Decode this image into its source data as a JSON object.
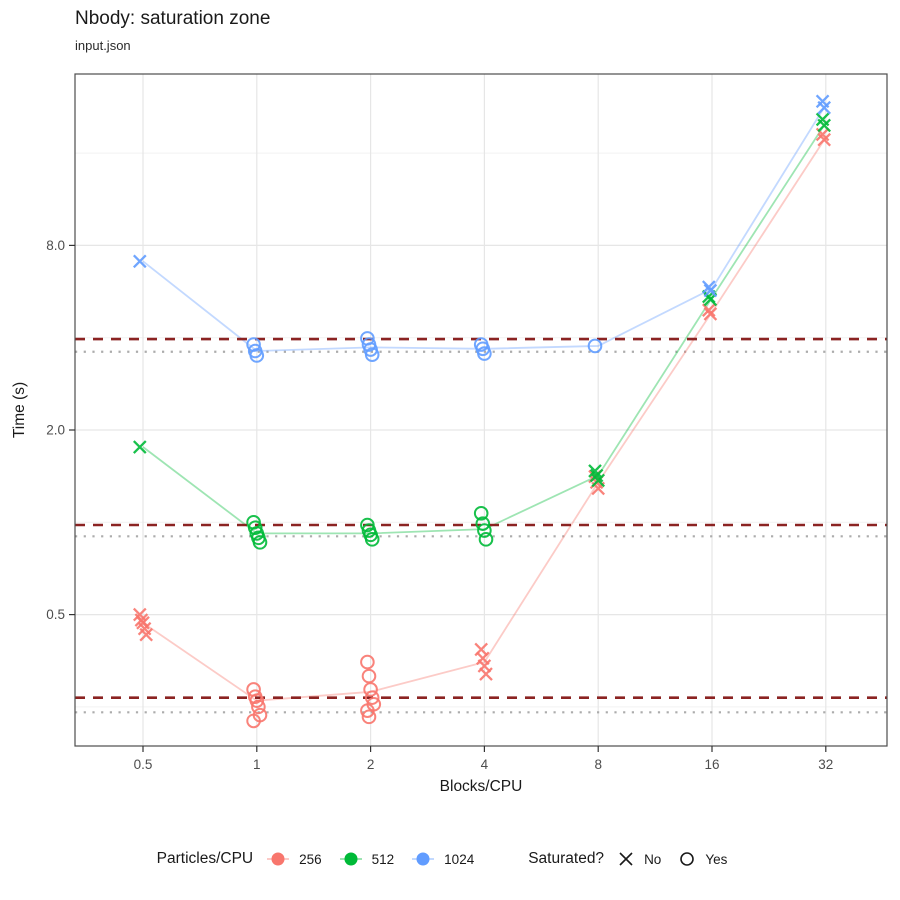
{
  "title": "Nbody: saturation zone",
  "subtitle": "input.json",
  "axes": {
    "x_label": "Blocks/CPU",
    "y_label": "Time (s)",
    "x_ticks": [
      "0.5",
      "1",
      "2",
      "4",
      "8",
      "16",
      "32"
    ],
    "y_ticks": [
      "0.5",
      "2.0",
      "8.0"
    ]
  },
  "legend": {
    "color": {
      "title": "Particles/CPU",
      "items": [
        {
          "label": "256",
          "color": "#F8766D"
        },
        {
          "label": "512",
          "color": "#00BA38"
        },
        {
          "label": "1024",
          "color": "#619CFF"
        }
      ]
    },
    "shape": {
      "title": "Saturated?",
      "items": [
        {
          "label": "No",
          "shape": "X"
        },
        {
          "label": "Yes",
          "shape": "O"
        }
      ]
    }
  },
  "chart_data": {
    "type": "scatter",
    "title": "Nbody: saturation zone",
    "subtitle": "input.json",
    "xlabel": "Blocks/CPU",
    "ylabel": "Time (s)",
    "x_scale": "log2",
    "y_scale": "log2",
    "x_breaks": [
      0.5,
      1,
      2,
      4,
      8,
      16,
      32
    ],
    "y_breaks": [
      0.5,
      2,
      8
    ],
    "y_minor": [
      0.25,
      1,
      4,
      16
    ],
    "grid": true,
    "legend_position": "bottom",
    "hlines": {
      "dashed": {
        "color": "#8B2322",
        "values": [
          0.268,
          0.98,
          3.96
        ]
      },
      "dotted": {
        "color": "#ACACAC",
        "values": [
          0.24,
          0.9,
          3.6
        ]
      }
    },
    "series": [
      {
        "name": "256",
        "color": "#F8766D",
        "line": {
          "x": [
            0.5,
            1,
            2,
            4,
            8,
            16,
            32
          ],
          "y": [
            0.47,
            0.262,
            0.28,
            0.35,
            1.35,
            4.85,
            18.0
          ]
        },
        "points": [
          {
            "x": 0.5,
            "sat": "No",
            "t": [
              0.5,
              0.48,
              0.47,
              0.45,
              0.43
            ]
          },
          {
            "x": 1,
            "sat": "Yes",
            "t": [
              0.285,
              0.27,
              0.262,
              0.25,
              0.235,
              0.225
            ]
          },
          {
            "x": 2,
            "sat": "Yes",
            "t": [
              0.35,
              0.315,
              0.285,
              0.268,
              0.255,
              0.243,
              0.232
            ]
          },
          {
            "x": 4,
            "sat": "No",
            "t": [
              0.385,
              0.36,
              0.34,
              0.32
            ]
          },
          {
            "x": 8,
            "sat": "No",
            "t": [
              1.41,
              1.35,
              1.29
            ]
          },
          {
            "x": 16,
            "sat": "No",
            "t": [
              4.92,
              4.78
            ]
          },
          {
            "x": 32,
            "sat": "No",
            "t": [
              18.4,
              17.7
            ]
          }
        ]
      },
      {
        "name": "512",
        "color": "#00BA38",
        "line": {
          "x": [
            0.5,
            1,
            2,
            4,
            8,
            16,
            32
          ],
          "y": [
            1.76,
            0.92,
            0.92,
            0.95,
            1.42,
            5.4,
            20.1
          ]
        },
        "points": [
          {
            "x": 0.5,
            "sat": "No",
            "t": [
              1.76
            ]
          },
          {
            "x": 1,
            "sat": "Yes",
            "t": [
              1.0,
              0.96,
              0.92,
              0.89,
              0.86
            ]
          },
          {
            "x": 2,
            "sat": "Yes",
            "t": [
              0.98,
              0.94,
              0.91,
              0.88
            ]
          },
          {
            "x": 4,
            "sat": "Yes",
            "t": [
              1.07,
              0.99,
              0.94,
              0.88
            ]
          },
          {
            "x": 8,
            "sat": "No",
            "t": [
              1.47,
              1.42,
              1.37
            ]
          },
          {
            "x": 16,
            "sat": "No",
            "t": [
              5.45,
              5.33
            ]
          },
          {
            "x": 32,
            "sat": "No",
            "t": [
              20.6,
              19.7
            ]
          }
        ]
      },
      {
        "name": "1024",
        "color": "#619CFF",
        "line": {
          "x": [
            0.5,
            1,
            2,
            4,
            8,
            16,
            32
          ],
          "y": [
            7.1,
            3.62,
            3.72,
            3.68,
            3.76,
            5.78,
            23.0
          ]
        },
        "points": [
          {
            "x": 0.5,
            "sat": "No",
            "t": [
              7.1
            ]
          },
          {
            "x": 1,
            "sat": "Yes",
            "t": [
              3.8,
              3.62,
              3.5
            ]
          },
          {
            "x": 2,
            "sat": "Yes",
            "t": [
              3.98,
              3.8,
              3.66,
              3.52
            ]
          },
          {
            "x": 4,
            "sat": "Yes",
            "t": [
              3.8,
              3.68,
              3.55
            ]
          },
          {
            "x": 8,
            "sat": "Yes",
            "t": [
              3.76
            ]
          },
          {
            "x": 16,
            "sat": "No",
            "t": [
              5.85,
              5.7
            ]
          },
          {
            "x": 32,
            "sat": "No",
            "t": [
              23.6,
              22.5
            ]
          }
        ]
      }
    ]
  }
}
